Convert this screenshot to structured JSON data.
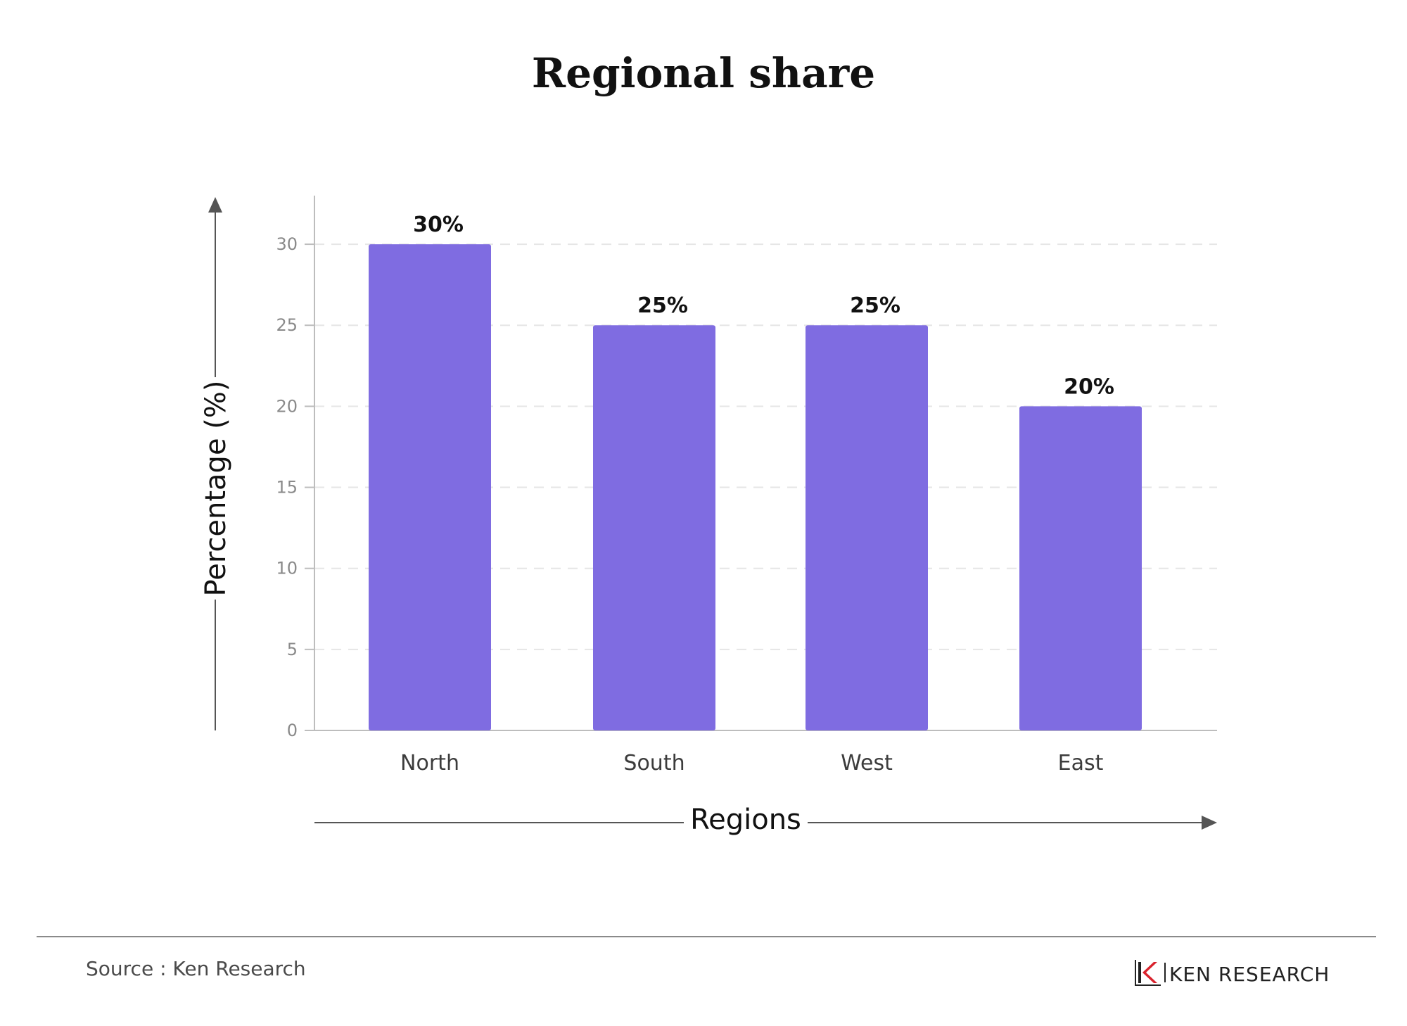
{
  "chart_data": {
    "type": "bar",
    "title": "Regional share",
    "xlabel": "Regions",
    "ylabel": "Percentage (%)",
    "categories": [
      "North",
      "South",
      "West",
      "East"
    ],
    "values": [
      30,
      25,
      25,
      20
    ],
    "value_labels": [
      "30%",
      "25%",
      "25%",
      "20%"
    ],
    "yticks": [
      0,
      5,
      10,
      15,
      20,
      25,
      30
    ],
    "ylim": [
      0,
      33
    ],
    "grid": true,
    "bar_color": "#7f6ce1"
  },
  "footer": {
    "source": "Source : Ken Research",
    "brand": "KEN RESEARCH"
  },
  "colors": {
    "axis": "#bdbdbd",
    "arrow": "#555555",
    "brand_red": "#d9232d"
  }
}
